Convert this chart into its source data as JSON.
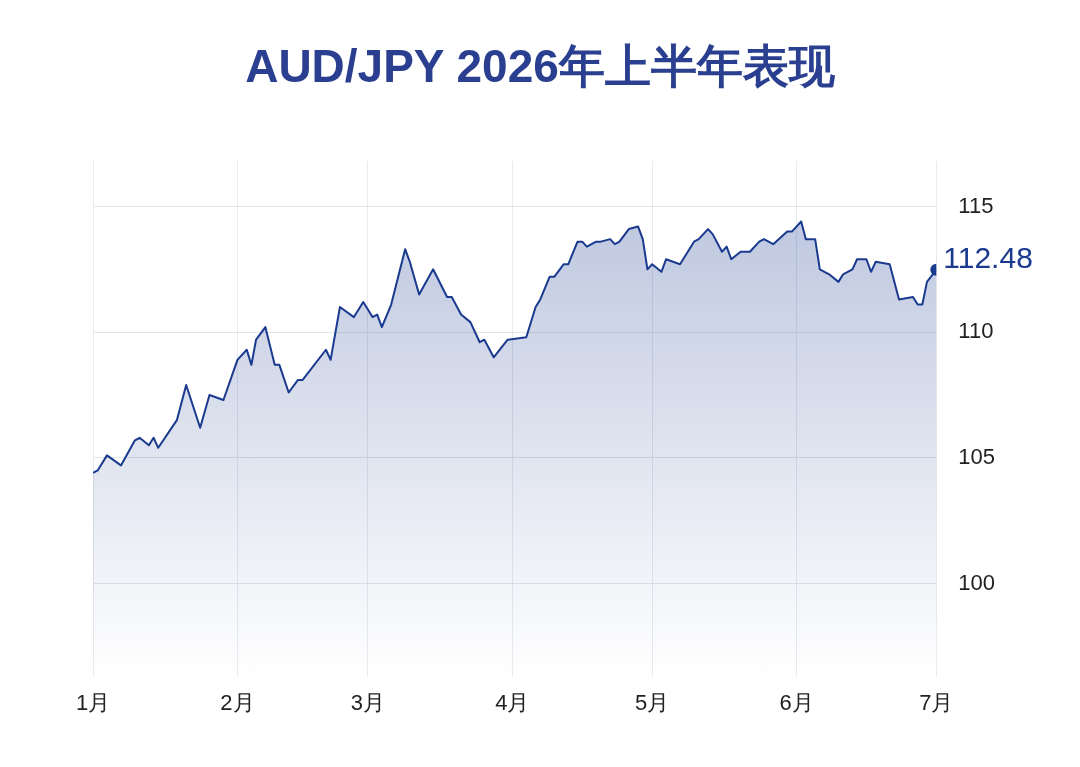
{
  "chart_data": {
    "type": "area",
    "title": "AUD/JPY 2026年上半年表现",
    "x": [
      "2026-01-01",
      "2026-01-02",
      "2026-01-04",
      "2026-01-07",
      "2026-01-10",
      "2026-01-11",
      "2026-01-13",
      "2026-01-14",
      "2026-01-15",
      "2026-01-19",
      "2026-01-21",
      "2026-01-24",
      "2026-01-26",
      "2026-01-29",
      "2026-02-01",
      "2026-02-03",
      "2026-02-04",
      "2026-02-05",
      "2026-02-07",
      "2026-02-09",
      "2026-02-10",
      "2026-02-12",
      "2026-02-14",
      "2026-02-15",
      "2026-02-20",
      "2026-02-21",
      "2026-02-23",
      "2026-02-26",
      "2026-02-28",
      "2026-03-02",
      "2026-03-03",
      "2026-03-04",
      "2026-03-06",
      "2026-03-09",
      "2026-03-10",
      "2026-03-12",
      "2026-03-15",
      "2026-03-18",
      "2026-03-19",
      "2026-03-21",
      "2026-03-23",
      "2026-03-25",
      "2026-03-26",
      "2026-03-28",
      "2026-03-31",
      "2026-04-04",
      "2026-04-06",
      "2026-04-07",
      "2026-04-09",
      "2026-04-10",
      "2026-04-12",
      "2026-04-13",
      "2026-04-15",
      "2026-04-16",
      "2026-04-17",
      "2026-04-19",
      "2026-04-20",
      "2026-04-22",
      "2026-04-23",
      "2026-04-24",
      "2026-04-26",
      "2026-04-28",
      "2026-04-29",
      "2026-04-30",
      "2026-05-01",
      "2026-05-03",
      "2026-05-04",
      "2026-05-07",
      "2026-05-10",
      "2026-05-11",
      "2026-05-13",
      "2026-05-14",
      "2026-05-16",
      "2026-05-17",
      "2026-05-18",
      "2026-05-20",
      "2026-05-22",
      "2026-05-24",
      "2026-05-25",
      "2026-05-27",
      "2026-05-30",
      "2026-05-31",
      "2026-06-02",
      "2026-06-03",
      "2026-06-05",
      "2026-06-06",
      "2026-06-08",
      "2026-06-10",
      "2026-06-11",
      "2026-06-13",
      "2026-06-14",
      "2026-06-16",
      "2026-06-17",
      "2026-06-18",
      "2026-06-21",
      "2026-06-23",
      "2026-06-26",
      "2026-06-27",
      "2026-06-28",
      "2026-06-29",
      "2026-07-01"
    ],
    "series": [
      {
        "color": "#1a3a8f",
        "values": [
          104.4,
          104.5,
          105.1,
          104.7,
          105.7,
          105.8,
          105.5,
          105.8,
          105.4,
          106.5,
          107.9,
          106.2,
          107.5,
          107.3,
          108.9,
          109.3,
          108.7,
          109.7,
          110.2,
          108.7,
          108.7,
          107.6,
          108.1,
          108.1,
          109.3,
          108.9,
          111.0,
          110.6,
          111.2,
          110.6,
          110.7,
          110.2,
          111.1,
          113.3,
          112.8,
          111.5,
          112.5,
          111.4,
          111.4,
          110.7,
          110.4,
          109.6,
          109.7,
          109.0,
          109.7,
          109.8,
          111.0,
          111.3,
          112.2,
          112.2,
          112.7,
          112.7,
          113.6,
          113.6,
          113.4,
          113.6,
          113.6,
          113.7,
          113.5,
          113.6,
          114.1,
          114.2,
          113.7,
          112.5,
          112.7,
          112.4,
          112.9,
          112.7,
          113.6,
          113.7,
          114.1,
          113.9,
          113.2,
          113.4,
          112.9,
          113.2,
          113.2,
          113.6,
          113.7,
          113.5,
          114.0,
          114.0,
          114.4,
          113.7,
          113.7,
          112.5,
          112.3,
          112.0,
          112.3,
          112.5,
          112.9,
          112.9,
          112.4,
          112.8,
          112.7,
          111.3,
          111.4,
          111.1,
          111.1,
          112.0,
          112.48
        ],
        "value_labels": [
          null,
          null,
          null,
          null,
          null,
          null,
          null,
          null,
          null,
          null,
          null,
          null,
          null,
          null,
          null,
          null,
          null,
          null,
          null,
          null,
          null,
          null,
          null,
          null,
          null,
          null,
          null,
          null,
          null,
          null,
          null,
          null,
          null,
          null,
          null,
          null,
          null,
          null,
          null,
          null,
          null,
          null,
          null,
          null,
          null,
          null,
          null,
          null,
          null,
          null,
          null,
          null,
          null,
          null,
          null,
          null,
          null,
          null,
          null,
          null,
          null,
          null,
          null,
          null,
          null,
          null,
          null,
          null,
          null,
          null,
          null,
          null,
          null,
          null,
          null,
          null,
          null,
          null,
          null,
          null,
          null,
          null,
          null,
          null,
          null,
          null,
          null,
          null,
          null,
          null,
          null,
          null,
          null,
          null,
          null,
          null,
          null,
          null,
          null,
          null,
          "112.48"
        ]
      }
    ],
    "xlim": [
      "2026-01-01",
      "2026-07-01"
    ],
    "xticks": [
      {
        "value": "2026-01-01",
        "label": "1月"
      },
      {
        "value": "2026-02-01",
        "label": "2月"
      },
      {
        "value": "2026-03-01",
        "label": "3月"
      },
      {
        "value": "2026-04-01",
        "label": "4月"
      },
      {
        "value": "2026-05-01",
        "label": "5月"
      },
      {
        "value": "2026-06-01",
        "label": "6月"
      },
      {
        "value": "2026-07-01",
        "label": "7月"
      }
    ],
    "ylim": [
      96.3,
      116.8
    ],
    "yticks": [
      100,
      105,
      110,
      115
    ],
    "grid": true,
    "line_style": "solid"
  }
}
